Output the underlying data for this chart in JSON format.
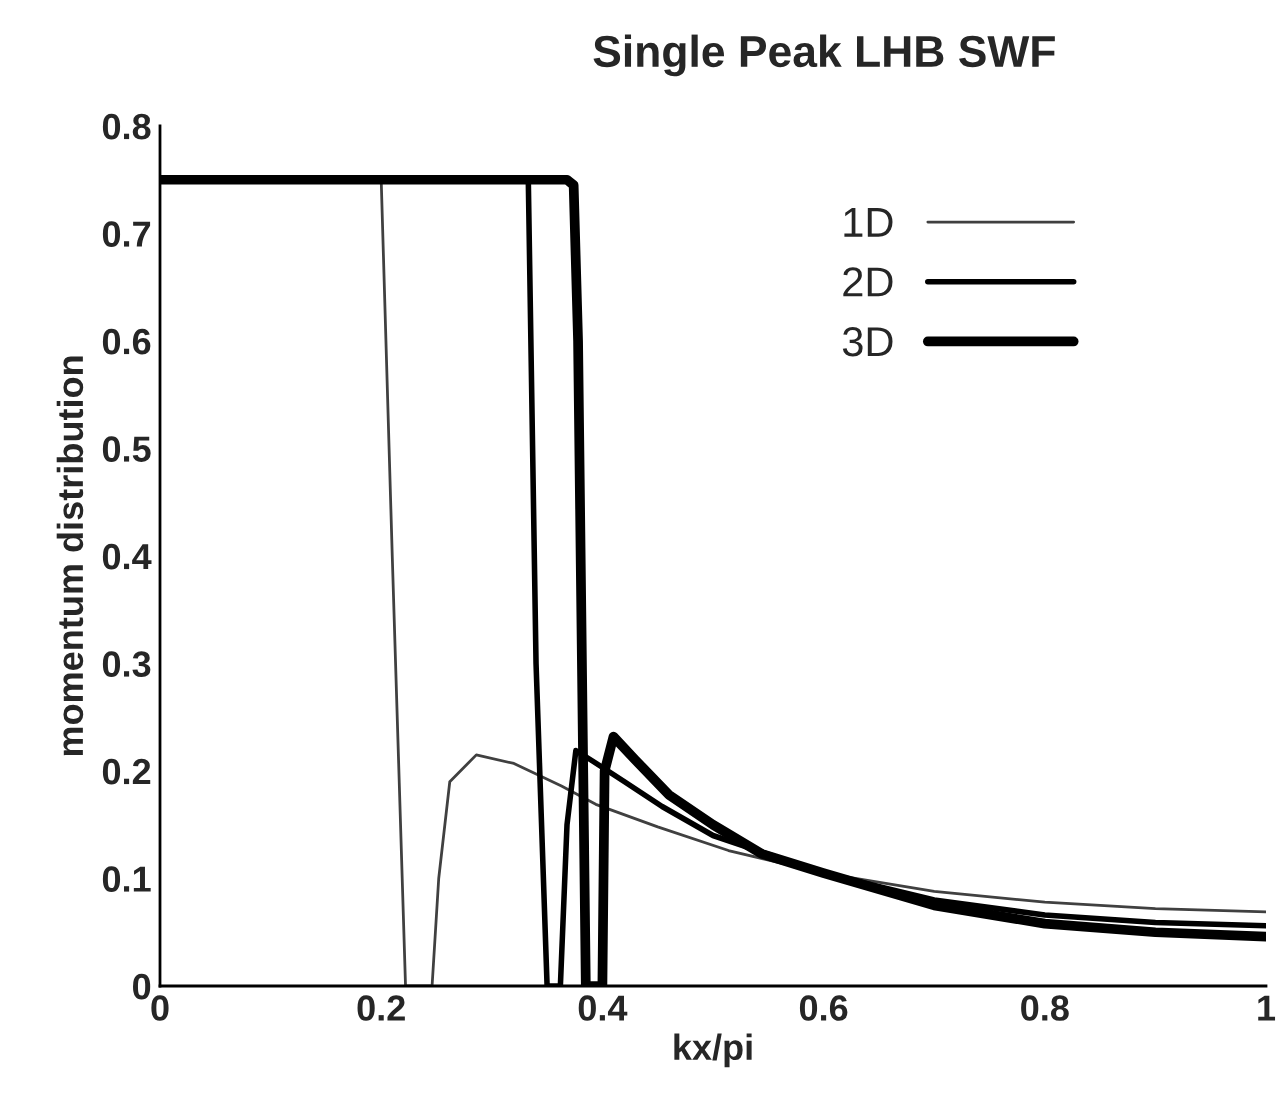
{
  "chart_data": {
    "type": "line",
    "title": "Single Peak LHB SWF",
    "xlabel": "kx/pi",
    "ylabel": "momentum distribution",
    "xlim": [
      0,
      1
    ],
    "ylim": [
      0,
      0.8
    ],
    "xticks": [
      0,
      0.2,
      0.4,
      0.6,
      0.8,
      1
    ],
    "yticks": [
      0,
      0.1,
      0.2,
      0.3,
      0.4,
      0.5,
      0.6,
      0.7,
      0.8
    ],
    "grid": false,
    "legend": "top right",
    "line_style": "solid",
    "marker": "none",
    "series": [
      {
        "name": "1D",
        "color": "#404040",
        "x": [
          0,
          0.2,
          0.21,
          0.222,
          0.246,
          0.252,
          0.262,
          0.286,
          0.32,
          0.363,
          0.394,
          0.45,
          0.514,
          0.6,
          0.7,
          0.8,
          0.9,
          1
        ],
        "values": [
          0.75,
          0.75,
          0.4,
          0,
          0,
          0.1,
          0.19,
          0.215,
          0.207,
          0.186,
          0.169,
          0.148,
          0.126,
          0.105,
          0.088,
          0.078,
          0.072,
          0.069
        ]
      },
      {
        "name": "2D",
        "color": "#000000",
        "x": [
          0,
          0.333,
          0.34,
          0.35,
          0.362,
          0.368,
          0.376,
          0.39,
          0.42,
          0.454,
          0.5,
          0.6,
          0.7,
          0.8,
          0.9,
          1
        ],
        "values": [
          0.75,
          0.75,
          0.3,
          0,
          0,
          0.15,
          0.219,
          0.21,
          0.19,
          0.167,
          0.14,
          0.105,
          0.08,
          0.066,
          0.059,
          0.056
        ]
      },
      {
        "name": "3D",
        "color": "#000000",
        "x": [
          0,
          0.368,
          0.374,
          0.378,
          0.385,
          0.4,
          0.402,
          0.41,
          0.43,
          0.46,
          0.5,
          0.544,
          0.6,
          0.7,
          0.8,
          0.9,
          1
        ],
        "values": [
          0.75,
          0.75,
          0.745,
          0.6,
          0,
          0,
          0.2,
          0.232,
          0.21,
          0.178,
          0.15,
          0.123,
          0.105,
          0.075,
          0.058,
          0.05,
          0.046
        ]
      }
    ]
  }
}
